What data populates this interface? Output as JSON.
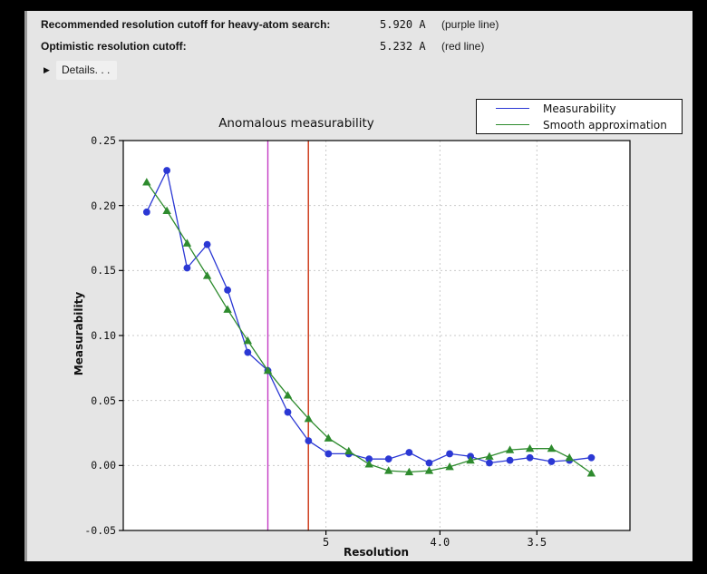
{
  "header": {
    "rows": [
      {
        "label": "Recommended resolution cutoff for heavy-atom search:",
        "value": "5.920 A",
        "note": "(purple line)"
      },
      {
        "label": "Optimistic resolution cutoff:",
        "value": "5.232 A",
        "note": "(red line)"
      }
    ],
    "details_label": "Details. . ."
  },
  "chart_data": {
    "type": "line",
    "title": "Anomalous measurability",
    "xlabel": "Resolution",
    "ylabel": "Measurability",
    "x_axis": {
      "scale": "inverse_resolution_squared",
      "xlim_inv_d2": [
        0.0,
        0.1
      ],
      "ticks": [
        {
          "label": "5",
          "resolution": 5.0
        },
        {
          "label": "4.0",
          "resolution": 4.0
        },
        {
          "label": "3.5",
          "resolution": 3.5
        }
      ]
    },
    "y_axis": {
      "ylim": [
        -0.05,
        0.25
      ],
      "ticks": [
        {
          "label": "0.25",
          "value": 0.25
        },
        {
          "label": "0.20",
          "value": 0.2
        },
        {
          "label": "0.15",
          "value": 0.15
        },
        {
          "label": "0.10",
          "value": 0.1
        },
        {
          "label": "0.05",
          "value": 0.05
        },
        {
          "label": "0.00",
          "value": 0.0
        },
        {
          "label": "-0.05",
          "value": -0.05
        }
      ]
    },
    "grid": "dashed",
    "legend_position": "top-right",
    "resolution_A": [
      14.71,
      10.78,
      8.91,
      7.77,
      6.97,
      6.38,
      5.92,
      5.55,
      5.23,
      4.97,
      4.74,
      4.54,
      4.37,
      4.21,
      4.07,
      3.94,
      3.82,
      3.72,
      3.62,
      3.53,
      3.44,
      3.37,
      3.29
    ],
    "series": [
      {
        "name": "Measurability",
        "color": "#2b38d4",
        "marker": "circle",
        "values": [
          0.195,
          0.227,
          0.152,
          0.17,
          0.135,
          0.087,
          0.073,
          0.041,
          0.019,
          0.009,
          0.009,
          0.005,
          0.005,
          0.01,
          0.002,
          0.009,
          0.007,
          0.002,
          0.004,
          0.006,
          0.003,
          0.004,
          0.006
        ]
      },
      {
        "name": "Smooth approximation",
        "color": "#2e8b2e",
        "marker": "triangle",
        "values": [
          0.218,
          0.196,
          0.171,
          0.146,
          0.12,
          0.096,
          0.073,
          0.054,
          0.036,
          0.021,
          0.011,
          0.001,
          -0.004,
          -0.005,
          -0.004,
          -0.001,
          0.004,
          0.007,
          0.012,
          0.013,
          0.013,
          0.006,
          -0.006
        ]
      }
    ],
    "vlines": [
      {
        "name": "purple line",
        "resolution": 5.92,
        "color": "#c43bc4"
      },
      {
        "name": "red line",
        "resolution": 5.232,
        "color": "#cc3311"
      }
    ],
    "colors": {
      "plot_bg": "#ffffff",
      "grid": "#c9c9c9",
      "frame": "#000000",
      "panel_bg": "#e5e5e5"
    }
  }
}
